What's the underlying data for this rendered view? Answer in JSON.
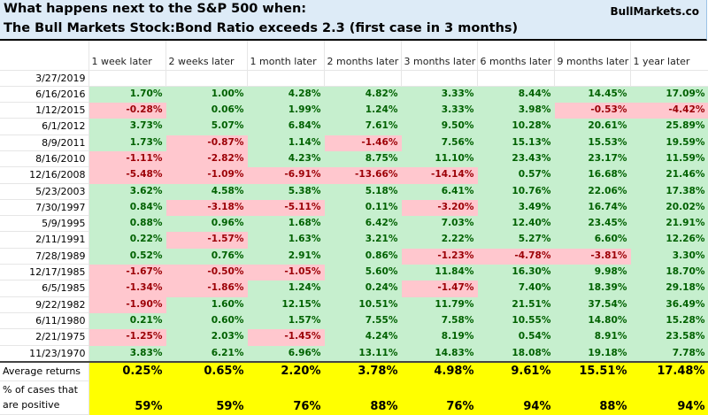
{
  "title": {
    "line1": "What happens next to the S&P 500 when:",
    "line2": "The Bull Markets Stock:Bond Ratio exceeds 2.3 (first case in 3 months)",
    "brand": "BullMarkets.co"
  },
  "colors": {
    "positive_bg": "#c6efce",
    "positive_text": "#006100",
    "negative_bg": "#ffc7ce",
    "negative_text": "#9c0006",
    "summary_bg": "#ffff00",
    "title_bg": "#ddebf7"
  },
  "table": {
    "columns": [
      "1 week later",
      "2 weeks later",
      "1 month later",
      "2 months later",
      "3 months later",
      "6 months later",
      "9 months later",
      "1 year later"
    ],
    "current_date": "3/27/2019",
    "rows": [
      {
        "date": "6/16/2016",
        "values": [
          "1.70%",
          "1.00%",
          "4.28%",
          "4.82%",
          "3.33%",
          "8.44%",
          "14.45%",
          "17.09%"
        ]
      },
      {
        "date": "1/12/2015",
        "values": [
          "-0.28%",
          "0.06%",
          "1.99%",
          "1.24%",
          "3.33%",
          "3.98%",
          "-0.53%",
          "-4.42%"
        ]
      },
      {
        "date": "6/1/2012",
        "values": [
          "3.73%",
          "5.07%",
          "6.84%",
          "7.61%",
          "9.50%",
          "10.28%",
          "20.61%",
          "25.89%"
        ]
      },
      {
        "date": "8/9/2011",
        "values": [
          "1.73%",
          "-0.87%",
          "1.14%",
          "-1.46%",
          "7.56%",
          "15.13%",
          "15.53%",
          "19.59%"
        ]
      },
      {
        "date": "8/16/2010",
        "values": [
          "-1.11%",
          "-2.82%",
          "4.23%",
          "8.75%",
          "11.10%",
          "23.43%",
          "23.17%",
          "11.59%"
        ]
      },
      {
        "date": "12/16/2008",
        "values": [
          "-5.48%",
          "-1.09%",
          "-6.91%",
          "-13.66%",
          "-14.14%",
          "0.57%",
          "16.68%",
          "21.46%"
        ]
      },
      {
        "date": "5/23/2003",
        "values": [
          "3.62%",
          "4.58%",
          "5.38%",
          "5.18%",
          "6.41%",
          "10.76%",
          "22.06%",
          "17.38%"
        ]
      },
      {
        "date": "7/30/1997",
        "values": [
          "0.84%",
          "-3.18%",
          "-5.11%",
          "0.11%",
          "-3.20%",
          "3.49%",
          "16.74%",
          "20.02%"
        ]
      },
      {
        "date": "5/9/1995",
        "values": [
          "0.88%",
          "0.96%",
          "1.68%",
          "6.42%",
          "7.03%",
          "12.40%",
          "23.45%",
          "21.91%"
        ]
      },
      {
        "date": "2/11/1991",
        "values": [
          "0.22%",
          "-1.57%",
          "1.63%",
          "3.21%",
          "2.22%",
          "5.27%",
          "6.60%",
          "12.26%"
        ]
      },
      {
        "date": "7/28/1989",
        "values": [
          "0.52%",
          "0.76%",
          "2.91%",
          "0.86%",
          "-1.23%",
          "-4.78%",
          "-3.81%",
          "3.30%"
        ]
      },
      {
        "date": "12/17/1985",
        "values": [
          "-1.67%",
          "-0.50%",
          "-1.05%",
          "5.60%",
          "11.84%",
          "16.30%",
          "9.98%",
          "18.70%"
        ]
      },
      {
        "date": "6/5/1985",
        "values": [
          "-1.34%",
          "-1.86%",
          "1.24%",
          "0.24%",
          "-1.47%",
          "7.40%",
          "18.39%",
          "29.18%"
        ]
      },
      {
        "date": "9/22/1982",
        "values": [
          "-1.90%",
          "1.60%",
          "12.15%",
          "10.51%",
          "11.79%",
          "21.51%",
          "37.54%",
          "36.49%"
        ]
      },
      {
        "date": "6/11/1980",
        "values": [
          "0.21%",
          "0.60%",
          "1.57%",
          "7.55%",
          "7.58%",
          "10.55%",
          "14.80%",
          "15.28%"
        ]
      },
      {
        "date": "2/21/1975",
        "values": [
          "-1.25%",
          "2.03%",
          "-1.45%",
          "4.24%",
          "8.19%",
          "0.54%",
          "8.91%",
          "23.58%"
        ]
      },
      {
        "date": "11/23/1970",
        "values": [
          "3.83%",
          "6.21%",
          "6.96%",
          "13.11%",
          "14.83%",
          "18.08%",
          "19.18%",
          "7.78%"
        ]
      }
    ],
    "average": {
      "label": "Average returns",
      "values": [
        "0.25%",
        "0.65%",
        "2.20%",
        "3.78%",
        "4.98%",
        "9.61%",
        "15.51%",
        "17.48%"
      ]
    },
    "positive_pct": {
      "label": "% of cases that are positive",
      "values": [
        "59%",
        "59%",
        "76%",
        "88%",
        "76%",
        "94%",
        "88%",
        "94%"
      ]
    }
  }
}
